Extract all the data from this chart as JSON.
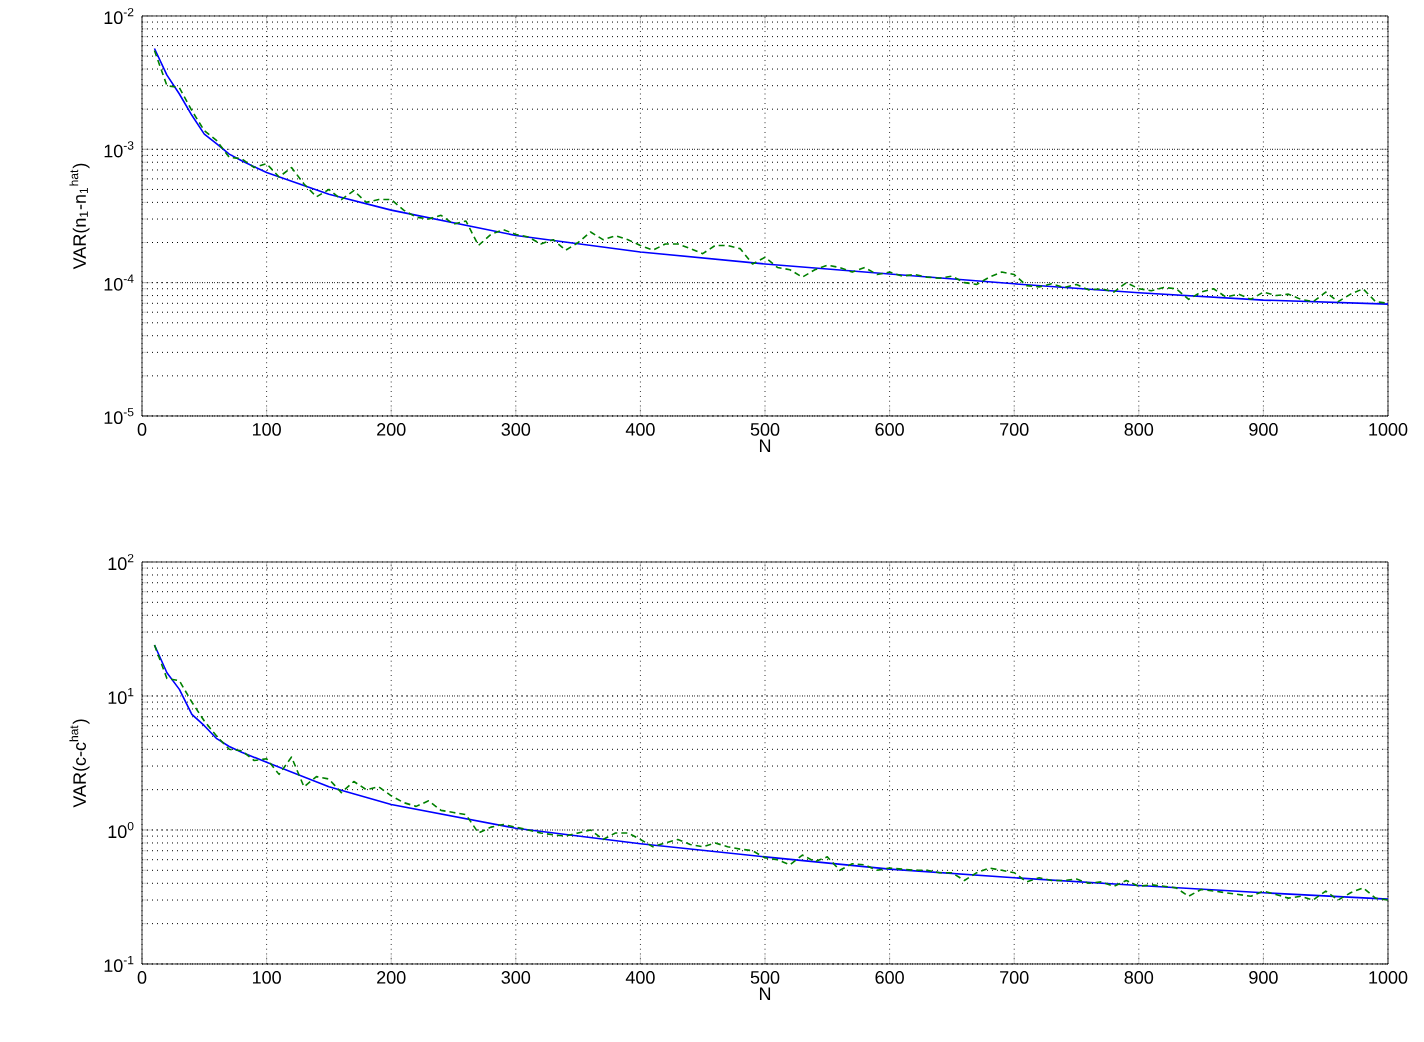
{
  "chart_data": [
    {
      "type": "line",
      "xlabel": "N",
      "ylabel": "VAR(n$_{1}$-n$_{1}$$^{hat}$)",
      "log": "y",
      "grid": true,
      "marker": "none",
      "xlim": [
        0,
        1000
      ],
      "xticks": [
        0,
        100,
        200,
        300,
        400,
        500,
        600,
        700,
        800,
        900,
        1000
      ],
      "ylim": [
        1e-05,
        0.01
      ],
      "yticks": [
        {
          "value": 1e-05,
          "label": "10$^{-5}$"
        },
        {
          "value": 0.0001,
          "label": "10$^{-4}$"
        },
        {
          "value": 0.001,
          "label": "10$^{-3}$"
        },
        {
          "value": 0.01,
          "label": "10$^{-2}$"
        }
      ],
      "series": [
        {
          "color": "#008000",
          "line_style": "dashed",
          "x": [
            10,
            20,
            30,
            40,
            50,
            60,
            70,
            80,
            90,
            100,
            110,
            120,
            130,
            140,
            150,
            160,
            170,
            180,
            190,
            200,
            210,
            220,
            230,
            240,
            250,
            260,
            270,
            280,
            290,
            300,
            310,
            320,
            330,
            340,
            350,
            360,
            370,
            380,
            390,
            400,
            410,
            420,
            430,
            440,
            450,
            460,
            470,
            480,
            490,
            500,
            510,
            520,
            530,
            540,
            550,
            560,
            570,
            580,
            590,
            600,
            610,
            620,
            630,
            640,
            650,
            660,
            670,
            680,
            690,
            700,
            710,
            720,
            730,
            740,
            750,
            760,
            770,
            780,
            790,
            800,
            810,
            820,
            830,
            840,
            850,
            860,
            870,
            880,
            890,
            900,
            910,
            920,
            930,
            940,
            950,
            960,
            970,
            980,
            990,
            1000
          ],
          "values": [
            0.0055,
            0.003,
            0.0029,
            0.00195,
            0.00138,
            0.00116,
            0.00087,
            0.00085,
            0.00073,
            0.00078,
            0.00062,
            0.00073,
            0.00055,
            0.00044,
            0.0005,
            0.00042,
            0.00049,
            0.0004,
            0.00042,
            0.00042,
            0.00035,
            0.00031,
            0.0003,
            0.00032,
            0.000275,
            0.00029,
            0.00019,
            0.00023,
            0.00025,
            0.00023,
            0.00022,
            0.000195,
            0.00021,
            0.000175,
            0.0002,
            0.00024,
            0.00021,
            0.000225,
            0.00021,
            0.00019,
            0.000175,
            0.000195,
            0.000195,
            0.00018,
            0.000165,
            0.00019,
            0.00019,
            0.00018,
            0.000138,
            0.000155,
            0.00013,
            0.000125,
            0.00011,
            0.000125,
            0.000135,
            0.00013,
            0.00012,
            0.00013,
            0.000115,
            0.00012,
            0.000112,
            0.000115,
            0.00011,
            0.000108,
            0.000112,
            0.0001,
            9.7e-05,
            0.00011,
            0.00012,
            0.000115,
            9.5e-05,
            9.3e-05,
            9.8e-05,
            9.2e-05,
            9.7e-05,
            8.8e-05,
            9e-05,
            8.5e-05,
            0.0001,
            9e-05,
            8.7e-05,
            9.2e-05,
            9e-05,
            7.5e-05,
            8.5e-05,
            9e-05,
            7.8e-05,
            8.2e-05,
            7.5e-05,
            8.5e-05,
            8e-05,
            8.2e-05,
            7.5e-05,
            7.2e-05,
            8.5e-05,
            7.2e-05,
            8.2e-05,
            9e-05,
            7.2e-05,
            7e-05
          ]
        },
        {
          "color": "#0000ff",
          "line_style": "solid",
          "x": [
            10,
            20,
            30,
            40,
            50,
            60,
            70,
            80,
            100,
            150,
            200,
            300,
            400,
            500,
            600,
            700,
            800,
            900,
            1000
          ],
          "values": [
            0.0057,
            0.0036,
            0.0026,
            0.0018,
            0.0013,
            0.0011,
            0.00092,
            0.00082,
            0.00067,
            0.00046,
            0.00035,
            0.000226,
            0.00017,
            0.000138,
            0.000116,
            9.8e-05,
            8.4e-05,
            7.4e-05,
            6.9e-05
          ]
        }
      ]
    },
    {
      "type": "line",
      "xlabel": "N",
      "ylabel": "VAR(c-c$^{hat}$)",
      "log": "y",
      "grid": true,
      "marker": "none",
      "xlim": [
        0,
        1000
      ],
      "xticks": [
        0,
        100,
        200,
        300,
        400,
        500,
        600,
        700,
        800,
        900,
        1000
      ],
      "ylim": [
        0.1,
        100
      ],
      "yticks": [
        {
          "value": 0.1,
          "label": "10$^{-1}$"
        },
        {
          "value": 1,
          "label": "10$^{0}$"
        },
        {
          "value": 10,
          "label": "10$^{1}$"
        },
        {
          "value": 100,
          "label": "10$^{2}$"
        }
      ],
      "series": [
        {
          "color": "#008000",
          "line_style": "dashed",
          "x": [
            10,
            20,
            30,
            40,
            50,
            60,
            70,
            80,
            90,
            100,
            110,
            120,
            130,
            140,
            150,
            160,
            170,
            180,
            190,
            200,
            210,
            220,
            230,
            240,
            250,
            260,
            270,
            280,
            290,
            300,
            310,
            320,
            330,
            340,
            350,
            360,
            370,
            380,
            390,
            400,
            410,
            420,
            430,
            440,
            450,
            460,
            470,
            480,
            490,
            500,
            510,
            520,
            530,
            540,
            550,
            560,
            570,
            580,
            590,
            600,
            610,
            620,
            630,
            640,
            650,
            660,
            670,
            680,
            690,
            700,
            710,
            720,
            730,
            740,
            750,
            760,
            770,
            780,
            790,
            800,
            810,
            820,
            830,
            840,
            850,
            860,
            870,
            880,
            890,
            900,
            910,
            920,
            930,
            940,
            950,
            960,
            970,
            980,
            990,
            1000
          ],
          "values": [
            24,
            13.5,
            13,
            9,
            6.5,
            5,
            4.0,
            3.9,
            3.3,
            3.4,
            2.6,
            3.5,
            2.1,
            2.5,
            2.4,
            1.9,
            2.3,
            2.0,
            2.1,
            1.8,
            1.6,
            1.5,
            1.65,
            1.4,
            1.35,
            1.3,
            0.95,
            1.05,
            1.1,
            1.05,
            1.0,
            0.95,
            0.92,
            0.9,
            0.95,
            1.0,
            0.85,
            0.95,
            0.95,
            0.85,
            0.75,
            0.8,
            0.85,
            0.78,
            0.75,
            0.8,
            0.75,
            0.72,
            0.7,
            0.62,
            0.6,
            0.55,
            0.65,
            0.58,
            0.63,
            0.5,
            0.56,
            0.55,
            0.5,
            0.52,
            0.51,
            0.5,
            0.5,
            0.48,
            0.48,
            0.42,
            0.48,
            0.52,
            0.5,
            0.48,
            0.41,
            0.44,
            0.42,
            0.42,
            0.43,
            0.4,
            0.41,
            0.38,
            0.42,
            0.38,
            0.39,
            0.38,
            0.37,
            0.32,
            0.36,
            0.35,
            0.34,
            0.33,
            0.32,
            0.35,
            0.33,
            0.31,
            0.32,
            0.3,
            0.35,
            0.3,
            0.34,
            0.37,
            0.31,
            0.3
          ]
        },
        {
          "color": "#0000ff",
          "line_style": "solid",
          "x": [
            10,
            20,
            30,
            40,
            50,
            60,
            70,
            80,
            100,
            150,
            200,
            300,
            400,
            500,
            600,
            700,
            800,
            900,
            1000
          ],
          "values": [
            24,
            14.9,
            11.2,
            7.3,
            6.0,
            4.8,
            4.2,
            3.8,
            3.2,
            2.1,
            1.55,
            1.03,
            0.79,
            0.63,
            0.51,
            0.44,
            0.385,
            0.34,
            0.305
          ]
        }
      ]
    }
  ]
}
